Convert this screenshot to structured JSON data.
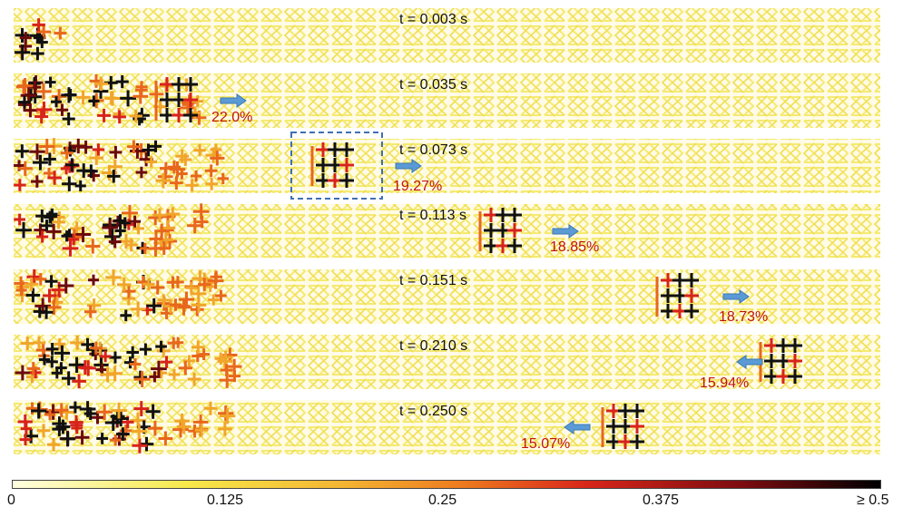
{
  "colors": {
    "strut_low": "#f6ec6e",
    "strut_mid": "#f1a52b",
    "strut_orange": "#e8671c",
    "strut_red": "#d7231b",
    "strut_dark": "#6b0a0d",
    "strut_black": "#111111",
    "arrow": "#5b9bd5",
    "percent_text": "#c0120c",
    "box_dash": "#3f6fb3"
  },
  "panels": [
    {
      "time_label": "t = 0.003 s",
      "percent": "",
      "direction": "none"
    },
    {
      "time_label": "t = 0.035 s",
      "percent": "22.0%",
      "direction": "right"
    },
    {
      "time_label": "t = 0.073 s",
      "percent": "19.27%",
      "direction": "right"
    },
    {
      "time_label": "t = 0.113 s",
      "percent": "18.85%",
      "direction": "right"
    },
    {
      "time_label": "t = 0.151 s",
      "percent": "18.73%",
      "direction": "right"
    },
    {
      "time_label": "t = 0.210 s",
      "percent": "15.94%",
      "direction": "left"
    },
    {
      "time_label": "t = 0.250 s",
      "percent": "15.07%",
      "direction": "left"
    }
  ],
  "colorbar": {
    "ticks": [
      "0",
      "0.125",
      "0.25",
      "0.375",
      "≥ 0.5"
    ]
  }
}
